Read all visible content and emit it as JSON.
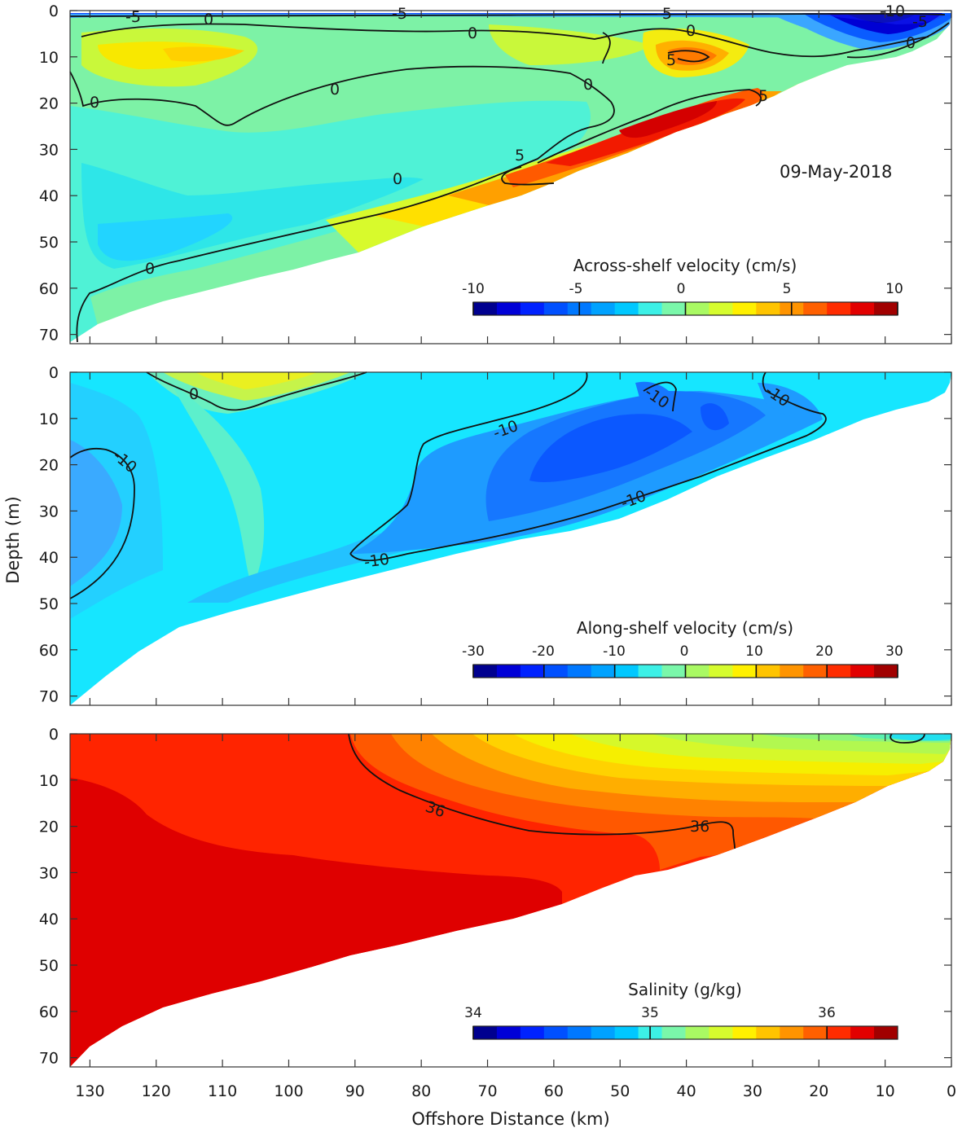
{
  "chart_data": [
    {
      "type": "contour",
      "panel": "across-shelf",
      "date_label": "09-May-2018",
      "xlabel": "Offshore Distance (km)",
      "ylabel": "Depth (m)",
      "xlim": [
        133,
        0
      ],
      "ylim": [
        72,
        0
      ],
      "xticks": [
        "130",
        "120",
        "110",
        "100",
        "90",
        "80",
        "70",
        "60",
        "50",
        "40",
        "30",
        "20",
        "10",
        "0"
      ],
      "yticks": [
        "0",
        "10",
        "20",
        "30",
        "40",
        "50",
        "60",
        "70"
      ],
      "colorbar": {
        "title": "Across-shelf velocity (cm/s)",
        "range": [
          -10,
          10
        ],
        "ticks": [
          "-10",
          "-5",
          "0",
          "5",
          "10"
        ],
        "colors": [
          "#00008f",
          "#0000d7",
          "#0022ff",
          "#0050ff",
          "#0078ff",
          "#00a2ff",
          "#00c8ff",
          "#3cf0e6",
          "#7af7aa",
          "#a9f963",
          "#d6fc2e",
          "#fff000",
          "#ffc400",
          "#ff9400",
          "#ff6000",
          "#ff2c00",
          "#e20000",
          "#a10000"
        ]
      },
      "contour_labels": [
        {
          "text": "-5",
          "x": 125,
          "y": 0.5
        },
        {
          "text": "-5",
          "x": 83,
          "y": 0.5
        },
        {
          "text": "-5",
          "x": 43,
          "y": 0.5
        },
        {
          "text": "-10",
          "x": 9,
          "y": 0
        },
        {
          "text": "0",
          "x": 112,
          "y": 2
        },
        {
          "text": "0",
          "x": 72,
          "y": 5
        },
        {
          "text": "0",
          "x": 39,
          "y": 4
        },
        {
          "text": "0",
          "x": 5,
          "y": 7
        },
        {
          "text": "-5",
          "x": 5,
          "y": 3
        },
        {
          "text": "5",
          "x": 42,
          "y": 11
        },
        {
          "text": "0",
          "x": 96,
          "y": 17
        },
        {
          "text": "0",
          "x": 130,
          "y": 20
        },
        {
          "text": "0",
          "x": 55,
          "y": 16
        },
        {
          "text": "5",
          "x": 28,
          "y": 19
        },
        {
          "text": "5",
          "x": 65,
          "y": 31
        },
        {
          "text": "0",
          "x": 84,
          "y": 37
        },
        {
          "text": "0",
          "x": 124,
          "y": 56
        }
      ],
      "series": [
        {
          "name": "bottom depth",
          "x": [
            0,
            2,
            5,
            10,
            15,
            20,
            25,
            30,
            35,
            40,
            45,
            50,
            55,
            60,
            65,
            70,
            75,
            80,
            85,
            90,
            95,
            100,
            105,
            110,
            115,
            120,
            125,
            130,
            133
          ],
          "values": [
            2,
            10,
            12,
            13,
            14,
            16,
            17,
            19,
            21,
            24,
            28,
            33,
            36,
            38,
            39,
            41,
            43,
            46,
            48,
            50,
            52,
            54,
            56,
            58,
            60,
            63,
            65,
            68,
            72
          ]
        }
      ]
    },
    {
      "type": "contour",
      "panel": "along-shelf",
      "xlim": [
        133,
        0
      ],
      "ylim": [
        72,
        0
      ],
      "yticks": [
        "0",
        "10",
        "20",
        "30",
        "40",
        "50",
        "60",
        "70"
      ],
      "colorbar": {
        "title": "Along-shelf velocity (cm/s)",
        "range": [
          -30,
          30
        ],
        "ticks": [
          "-30",
          "-20",
          "-10",
          "0",
          "10",
          "20",
          "30"
        ],
        "colors": [
          "#00008f",
          "#0000d7",
          "#0022ff",
          "#0050ff",
          "#0078ff",
          "#00a2ff",
          "#00c8ff",
          "#3cf0e6",
          "#7af7aa",
          "#a9f963",
          "#d6fc2e",
          "#fff000",
          "#ffc400",
          "#ff9400",
          "#ff6000",
          "#ff2c00",
          "#e20000",
          "#a10000"
        ]
      },
      "contour_labels": [
        {
          "text": "0",
          "x": 114,
          "y": 5
        },
        {
          "text": "-10",
          "x": 126,
          "y": 19
        },
        {
          "text": "-10",
          "x": 65,
          "y": 12
        },
        {
          "text": "-10",
          "x": 44,
          "y": 5
        },
        {
          "text": "-10",
          "x": 25,
          "y": 5
        },
        {
          "text": "-10",
          "x": 48,
          "y": 27
        },
        {
          "text": "-10",
          "x": 87,
          "y": 41
        }
      ]
    },
    {
      "type": "contour",
      "panel": "salinity",
      "xlim": [
        133,
        0
      ],
      "ylim": [
        72,
        0
      ],
      "yticks": [
        "0",
        "10",
        "20",
        "30",
        "40",
        "50",
        "60",
        "70"
      ],
      "colorbar": {
        "title": "Salinity (g/kg)",
        "range": [
          34,
          36.4
        ],
        "ticks": [
          "34",
          "35",
          "36"
        ],
        "colors": [
          "#00008f",
          "#0000d7",
          "#0022ff",
          "#0050ff",
          "#0078ff",
          "#00a2ff",
          "#00c8ff",
          "#3cf0e6",
          "#7af7aa",
          "#a9f963",
          "#d6fc2e",
          "#fff000",
          "#ffc400",
          "#ff9400",
          "#ff6000",
          "#ff2c00",
          "#e20000",
          "#a10000"
        ]
      },
      "contour_labels": [
        {
          "text": "36",
          "x": 78,
          "y": 17
        },
        {
          "text": "36",
          "x": 37,
          "y": 20
        }
      ]
    }
  ]
}
